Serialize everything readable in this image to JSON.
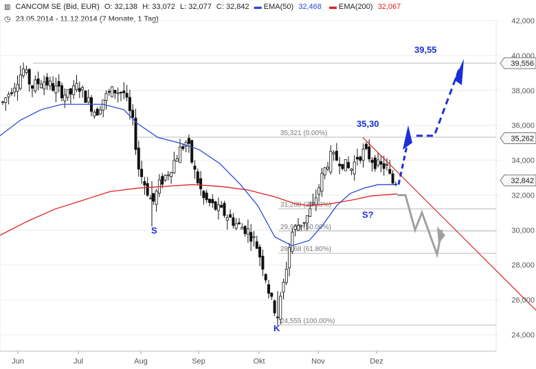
{
  "header": {
    "icon": "chart-bars-icon",
    "symbol": "CANCOM SE (Bid, EUR)",
    "open": "O: 32,138",
    "high": "H: 33,072",
    "low": "L: 32,077",
    "close": "C: 32,842",
    "ema50_label": "EMA(50)",
    "ema50_value": "32,468",
    "ema200_label": "EMA(200)",
    "ema200_value": "32,067",
    "clock_icon": "clock-icon",
    "range": "23.05.2014 - 11.12.2014 (7 Monate, 1 Tag)"
  },
  "colors": {
    "ema50": "#2b46d6",
    "ema200": "#e02020",
    "annotation": "#1a2fd6",
    "projection": "#a0a0a0",
    "trendline": "#e02020"
  },
  "chart_data": {
    "type": "candlestick",
    "x_ticks": [
      "Jun",
      "Jul",
      "Aug",
      "Sep",
      "Okt",
      "Nov",
      "Dez"
    ],
    "y_ticks": [
      "24,000",
      "26,000",
      "28,000",
      "30,000",
      "32,000",
      "34,000",
      "36,000",
      "38,000",
      "40,000",
      "42,000"
    ],
    "ylim": [
      23.5,
      42.0
    ],
    "price_badges": [
      "39,556",
      "35,262",
      "32,842"
    ],
    "fib_levels": [
      {
        "label": "35,321 (0.00%)",
        "value": 35.321
      },
      {
        "label": "31,208 (38.20%)",
        "value": 31.208
      },
      {
        "label": "29,938 (50.00%)",
        "value": 29.938
      },
      {
        "label": "28,668 (61.80%)",
        "value": 28.668
      },
      {
        "label": "24,555 (100.00%)",
        "value": 24.555
      }
    ],
    "annotations": [
      "39,55",
      "35,30",
      "S",
      "S?",
      "K"
    ],
    "series": [
      {
        "name": "EMA(50)",
        "last": 32.468
      },
      {
        "name": "EMA(200)",
        "last": 32.067
      }
    ]
  }
}
